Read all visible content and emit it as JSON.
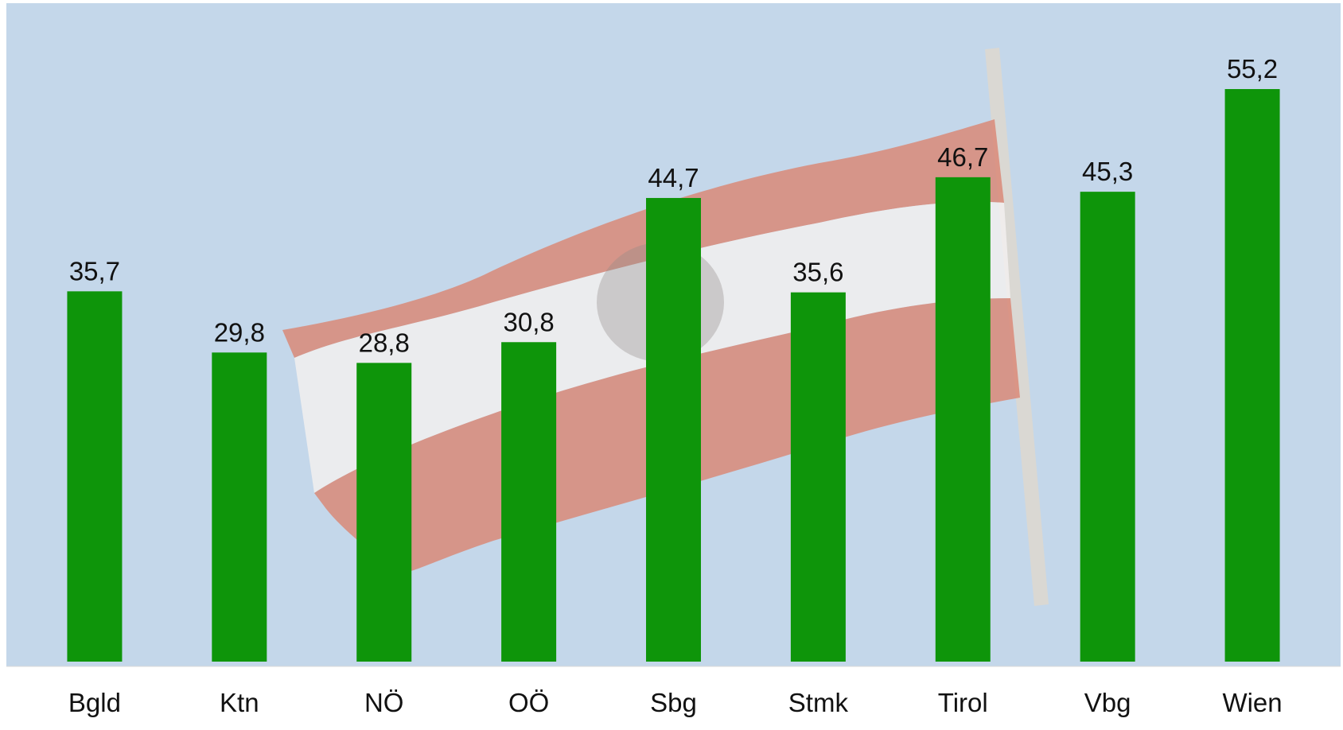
{
  "chart_data": {
    "type": "bar",
    "categories": [
      "Bgld",
      "Ktn",
      "NÖ",
      "OÖ",
      "Sbg",
      "Stmk",
      "Tirol",
      "Vbg",
      "Wien"
    ],
    "values": [
      35.7,
      29.8,
      28.8,
      30.8,
      44.7,
      35.6,
      46.7,
      45.3,
      55.2
    ],
    "value_labels": [
      "35,7",
      "29,8",
      "28,8",
      "30,8",
      "44,7",
      "35,6",
      "46,7",
      "45,3",
      "55,2"
    ],
    "color": "#0e950a"
  }
}
